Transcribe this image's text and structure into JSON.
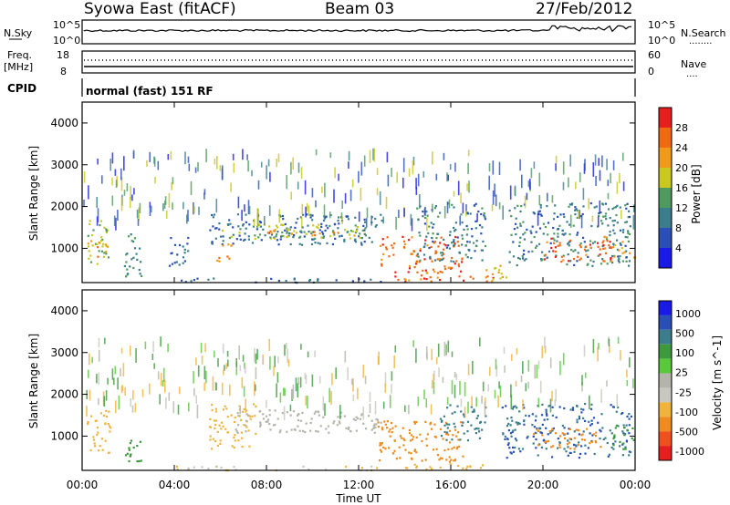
{
  "header": {
    "station": "Syowa East (fitACF)",
    "beam": "Beam 03",
    "date": "27/Feb/2012"
  },
  "nsky_panel": {
    "left_label": "N.Sky",
    "right_label": "N.Search",
    "right_legend_style": "........",
    "left_ticks": [
      "10^5",
      "10^0"
    ],
    "right_ticks": [
      "10^5",
      "10^0"
    ]
  },
  "freq_panel": {
    "left_label_line1": "Freq.",
    "left_label_line2": "[MHz]",
    "left_ticks": [
      "18",
      "8"
    ],
    "right_label": "Nave",
    "right_legend_style": "....",
    "right_ticks": [
      "60",
      "0"
    ]
  },
  "cpid": {
    "label": "CPID",
    "mode_text": "normal (fast) 151 RF"
  },
  "colors": {
    "power_scale": [
      "#1a1ae6",
      "#2a50b8",
      "#3c7d8c",
      "#4f9a5e",
      "#c8c81e",
      "#f09a1a",
      "#f06a14",
      "#e61e1e"
    ],
    "velocity_scale": [
      "#e61e1e",
      "#f0501e",
      "#f08c1e",
      "#f0b43c",
      "#c8c8c0",
      "#b4b4aa",
      "#5ac83c",
      "#3c9a3c",
      "#3c7d8c",
      "#2a50b8",
      "#1a1ae6"
    ],
    "ground_scatter": "#b4b4aa"
  },
  "chart_data": [
    {
      "type": "heatmap",
      "title": "",
      "xlabel": "",
      "ylabel": "Slant Range [km]",
      "x_ticks": [
        "00:00",
        "04:00",
        "08:00",
        "12:00",
        "16:00",
        "20:00",
        "00:00"
      ],
      "y_ticks": [
        "1000",
        "2000",
        "3000",
        "4000"
      ],
      "xlim": [
        0,
        24
      ],
      "ylim": [
        180,
        4500
      ],
      "colorbar_label": "Power [dB]",
      "colorbar_ticks": [
        "4",
        "8",
        "12",
        "16",
        "20",
        "24",
        "28"
      ],
      "colorbar_range": [
        0,
        32
      ],
      "regions": [
        {
          "t0": 0.2,
          "t1": 1.2,
          "r0": 600,
          "r1": 1700,
          "value": 16
        },
        {
          "t0": 0.2,
          "t1": 1.2,
          "r0": 800,
          "r1": 1200,
          "value": 22
        },
        {
          "t0": 1.8,
          "t1": 2.6,
          "r0": 300,
          "r1": 1400,
          "value": 12
        },
        {
          "t0": 3.6,
          "t1": 4.6,
          "r0": 600,
          "r1": 1300,
          "value": 8
        },
        {
          "t0": 5.5,
          "t1": 13.0,
          "r0": 1100,
          "r1": 1850,
          "value": 8
        },
        {
          "t0": 6.0,
          "t1": 12.5,
          "r0": 1250,
          "r1": 1600,
          "value": 16
        },
        {
          "t0": 8.0,
          "t1": 12.0,
          "r0": 1300,
          "r1": 1450,
          "value": 22
        },
        {
          "t0": 5.8,
          "t1": 6.5,
          "r0": 700,
          "r1": 1200,
          "value": 24
        },
        {
          "t0": 12.9,
          "t1": 16.5,
          "r0": 500,
          "r1": 1300,
          "value": 26
        },
        {
          "t0": 13.5,
          "t1": 18.0,
          "r0": 220,
          "r1": 500,
          "value": 26
        },
        {
          "t0": 14.5,
          "t1": 17.5,
          "r0": 700,
          "r1": 2100,
          "value": 10
        },
        {
          "t0": 17.5,
          "t1": 18.5,
          "r0": 250,
          "r1": 650,
          "value": 18
        },
        {
          "t0": 18.5,
          "t1": 23.8,
          "r0": 600,
          "r1": 2100,
          "value": 10
        },
        {
          "t0": 20.0,
          "t1": 23.0,
          "r0": 700,
          "r1": 1300,
          "value": 26
        },
        {
          "t0": 23.0,
          "t1": 24.0,
          "r0": 800,
          "r1": 1200,
          "value": 22
        },
        {
          "t0": 4.0,
          "t1": 13.0,
          "r0": 200,
          "r1": 300,
          "value": 8
        }
      ]
    },
    {
      "type": "heatmap",
      "title": "",
      "xlabel": "Time UT",
      "ylabel": "Slant Range [km]",
      "x_ticks": [
        "00:00",
        "04:00",
        "08:00",
        "12:00",
        "16:00",
        "20:00",
        "00:00"
      ],
      "y_ticks": [
        "1000",
        "2000",
        "3000",
        "4000"
      ],
      "xlim": [
        0,
        24
      ],
      "ylim": [
        180,
        4500
      ],
      "colorbar_label": "Velocity [m s^-1]",
      "colorbar_ticks": [
        "1000",
        "500",
        "100",
        "25",
        "-25",
        "-100",
        "-500",
        "-1000"
      ],
      "regions": [
        {
          "t0": 0.2,
          "t1": 1.2,
          "r0": 600,
          "r1": 1700,
          "value": -200
        },
        {
          "t0": 1.8,
          "t1": 2.6,
          "r0": 400,
          "r1": 1100,
          "value": 200
        },
        {
          "t0": 5.5,
          "t1": 7.5,
          "r0": 700,
          "r1": 1800,
          "value": -200
        },
        {
          "t0": 6.5,
          "t1": 13.0,
          "r0": 1100,
          "r1": 1650,
          "value": 0
        },
        {
          "t0": 12.8,
          "t1": 16.5,
          "r0": 400,
          "r1": 1400,
          "value": -300
        },
        {
          "t0": 14.0,
          "t1": 18.0,
          "r0": 220,
          "r1": 380,
          "value": -200
        },
        {
          "t0": 15.5,
          "t1": 17.5,
          "r0": 900,
          "r1": 1800,
          "value": 300
        },
        {
          "t0": 18.2,
          "t1": 23.8,
          "r0": 500,
          "r1": 1800,
          "value": 500
        },
        {
          "t0": 19.5,
          "t1": 22.5,
          "r0": 700,
          "r1": 1200,
          "value": -300
        },
        {
          "t0": 23.0,
          "t1": 24.0,
          "r0": 700,
          "r1": 1300,
          "value": 200
        },
        {
          "t0": 4.0,
          "t1": 13.0,
          "r0": 200,
          "r1": 300,
          "value": -100
        }
      ]
    }
  ]
}
